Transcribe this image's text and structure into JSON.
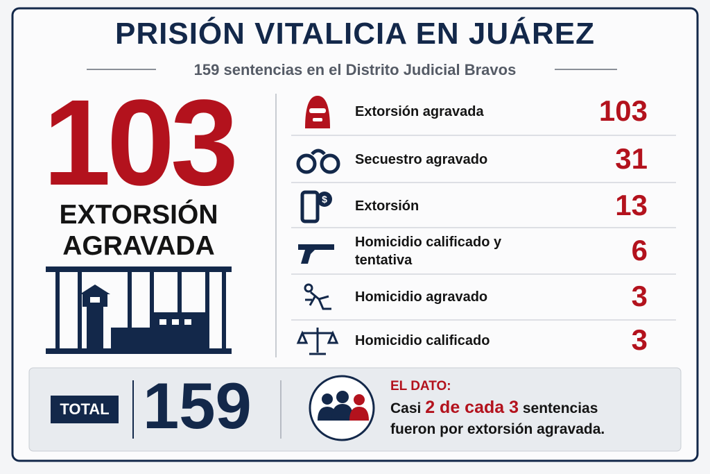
{
  "header": {
    "title": "PRISIÓN VITALICIA EN JUÁREZ",
    "subtitle": "159 sentencias en el Distrito Judicial Bravos"
  },
  "highlight": {
    "value": 103,
    "lines": [
      "EXTORSIÓN",
      "AGRAVADA"
    ]
  },
  "list": [
    {
      "label": "Extorsión agravada",
      "value": 103
    },
    {
      "label": "Secuestro agravado",
      "value": 31
    },
    {
      "label": "Extorsión",
      "value": 13
    },
    {
      "label": "Homicidio calificado y tentativa",
      "value": 6
    },
    {
      "label": "Homicidio agravado",
      "value": 3
    },
    {
      "label": "Homicidio calificado",
      "value": 3
    }
  ],
  "footer": {
    "total_label": "TOTAL",
    "total": 159,
    "dato_title": "EL DATO:",
    "dato": [
      "Casi",
      "2 de cada 3",
      "sentencias fueron por extorsión agravada."
    ]
  }
}
